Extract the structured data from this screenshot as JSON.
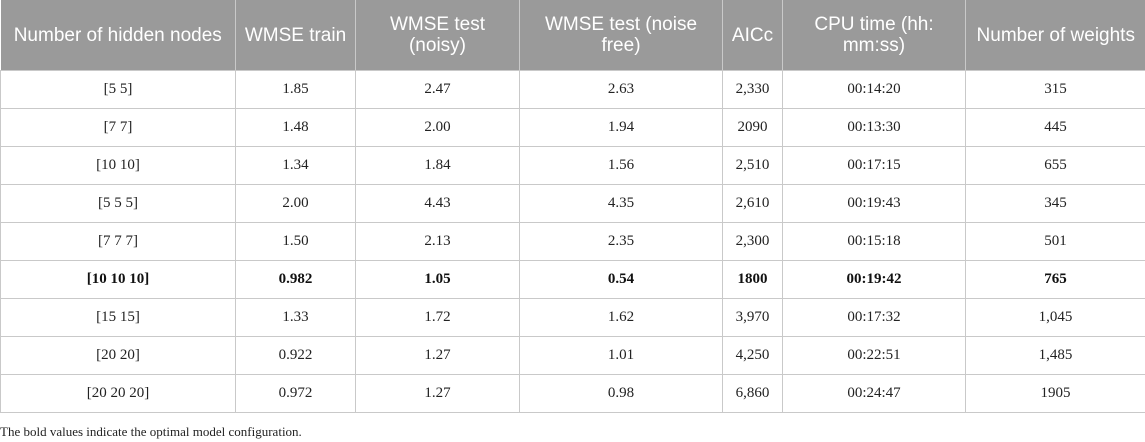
{
  "table": {
    "headers": [
      "Number of hidden nodes",
      "WMSE train",
      "WMSE test (noisy)",
      "WMSE test (noise free)",
      "AICc",
      "CPU time (hh: mm:ss)",
      "Number of weights"
    ],
    "rows": [
      {
        "cells": [
          "[5 5]",
          "1.85",
          "2.47",
          "2.63",
          "2,330",
          "00:14:20",
          "315"
        ],
        "bold": false
      },
      {
        "cells": [
          "[7 7]",
          "1.48",
          "2.00",
          "1.94",
          "2090",
          "00:13:30",
          "445"
        ],
        "bold": false
      },
      {
        "cells": [
          "[10 10]",
          "1.34",
          "1.84",
          "1.56",
          "2,510",
          "00:17:15",
          "655"
        ],
        "bold": false
      },
      {
        "cells": [
          "[5 5 5]",
          "2.00",
          "4.43",
          "4.35",
          "2,610",
          "00:19:43",
          "345"
        ],
        "bold": false
      },
      {
        "cells": [
          "[7 7 7]",
          "1.50",
          "2.13",
          "2.35",
          "2,300",
          "00:15:18",
          "501"
        ],
        "bold": false
      },
      {
        "cells": [
          "[10 10 10]",
          "0.982",
          "1.05",
          "0.54",
          "1800",
          "00:19:42",
          "765"
        ],
        "bold": true
      },
      {
        "cells": [
          "[15 15]",
          "1.33",
          "1.72",
          "1.62",
          "3,970",
          "00:17:32",
          "1,045"
        ],
        "bold": false
      },
      {
        "cells": [
          "[20 20]",
          "0.922",
          "1.27",
          "1.01",
          "4,250",
          "00:22:51",
          "1,485"
        ],
        "bold": false
      },
      {
        "cells": [
          "[20 20 20]",
          "0.972",
          "1.27",
          "0.98",
          "6,860",
          "00:24:47",
          "1905"
        ],
        "bold": false
      }
    ],
    "footnote": "The bold values indicate the optimal model configuration."
  }
}
